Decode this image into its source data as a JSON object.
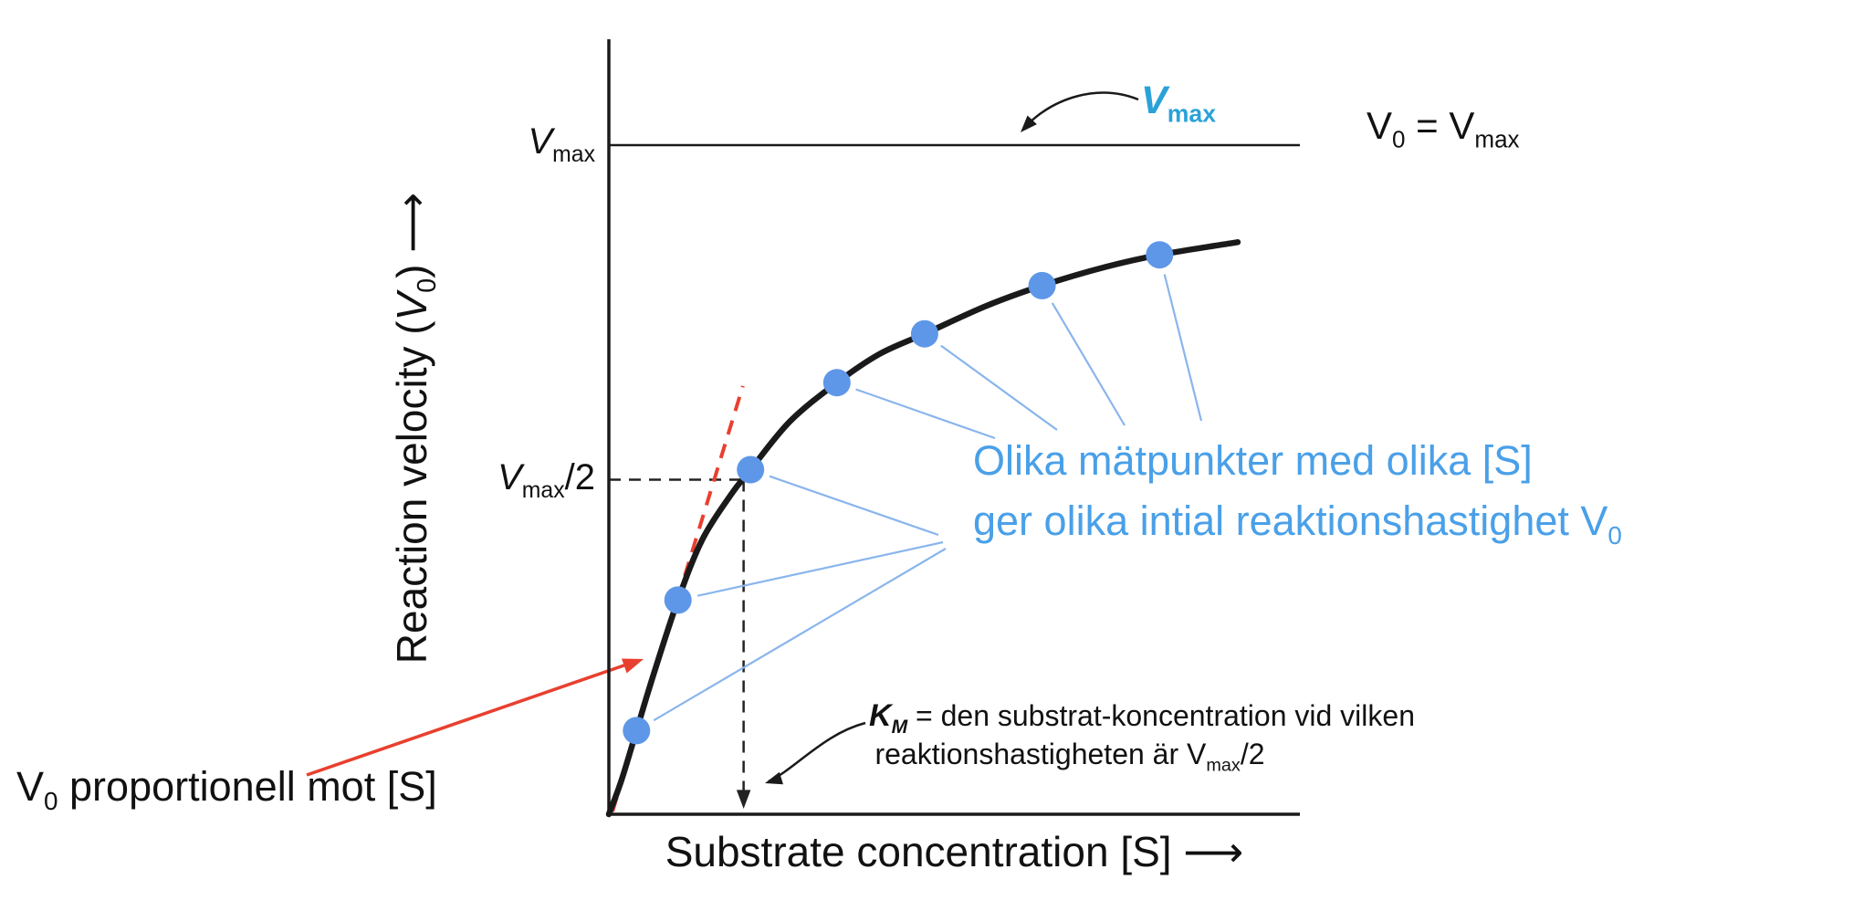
{
  "chart_data": {
    "type": "line",
    "title": "",
    "xlabel": "Substrate concentration [S]",
    "ylabel": "Reaction velocity (V0)",
    "x_range_normalized": [
      0,
      1.0
    ],
    "y_range_normalized": [
      0,
      1.16
    ],
    "grid": false,
    "vmax_value": 1.0,
    "half_max_value": 0.5,
    "km_x": 0.195,
    "curve_points": [
      [
        0.0,
        0.0
      ],
      [
        0.018,
        0.05
      ],
      [
        0.04,
        0.125
      ],
      [
        0.065,
        0.21
      ],
      [
        0.1,
        0.32
      ],
      [
        0.135,
        0.41
      ],
      [
        0.177,
        0.478
      ],
      [
        0.205,
        0.515
      ],
      [
        0.262,
        0.587
      ],
      [
        0.33,
        0.645
      ],
      [
        0.392,
        0.688
      ],
      [
        0.457,
        0.718
      ],
      [
        0.547,
        0.76
      ],
      [
        0.627,
        0.79
      ],
      [
        0.719,
        0.818
      ],
      [
        0.797,
        0.836
      ],
      [
        0.91,
        0.855
      ]
    ],
    "data_points": [
      [
        0.04,
        0.125
      ],
      [
        0.1,
        0.32
      ],
      [
        0.205,
        0.515
      ],
      [
        0.33,
        0.645
      ],
      [
        0.457,
        0.718
      ],
      [
        0.627,
        0.79
      ],
      [
        0.797,
        0.836
      ]
    ],
    "tangent_line": {
      "from": [
        0,
        0
      ],
      "to": [
        0.194,
        0.64
      ]
    },
    "annotations": {
      "vmax_axis_label": "Vmax",
      "half_axis_label": "Vmax/2",
      "asymptote_note": "V0 = Vmax",
      "vmax_curve_label": "Vmax",
      "km_definition": "KM = den substrat-koncentration vid vilken reaktionshastigheten är Vmax/2",
      "measurement_note": "Olika mätpunkter med olika [S] ger olika intial reaktionshastighet V0",
      "proportionality_note": "V0 proportionell mot [S]"
    }
  },
  "labels": {
    "v": "V",
    "sub_max": "max",
    "sub_zero": "0",
    "half_suffix": "/2",
    "v0_eq": " = ",
    "y_axis_prefix": "Reaction velocity (",
    "y_axis_suffix": ") ",
    "x_axis": "Substrate concentration [S] ",
    "long_arrow": "⟶",
    "prop_suffix": " proportionell mot [S]",
    "km_k": "K",
    "km_sub": "M",
    "km_line1_rest": " = den substrat-koncentration vid vilken",
    "km_line2_prefix": "reaktionshastigheten är ",
    "blue_line1": "Olika mätpunkter med olika [S]",
    "blue_line2_prefix": "ger olika intial reaktionshastighet "
  },
  "colors": {
    "curve": "#1a1a1a",
    "axis": "#1a1a1a",
    "dashed": "#222222",
    "data_point": "#5e97e8",
    "callout_line": "#8ab5ec",
    "blue_text": "#4aa0e8",
    "vmax_annotation": "#2aa2d8",
    "red": "#e8402f"
  }
}
